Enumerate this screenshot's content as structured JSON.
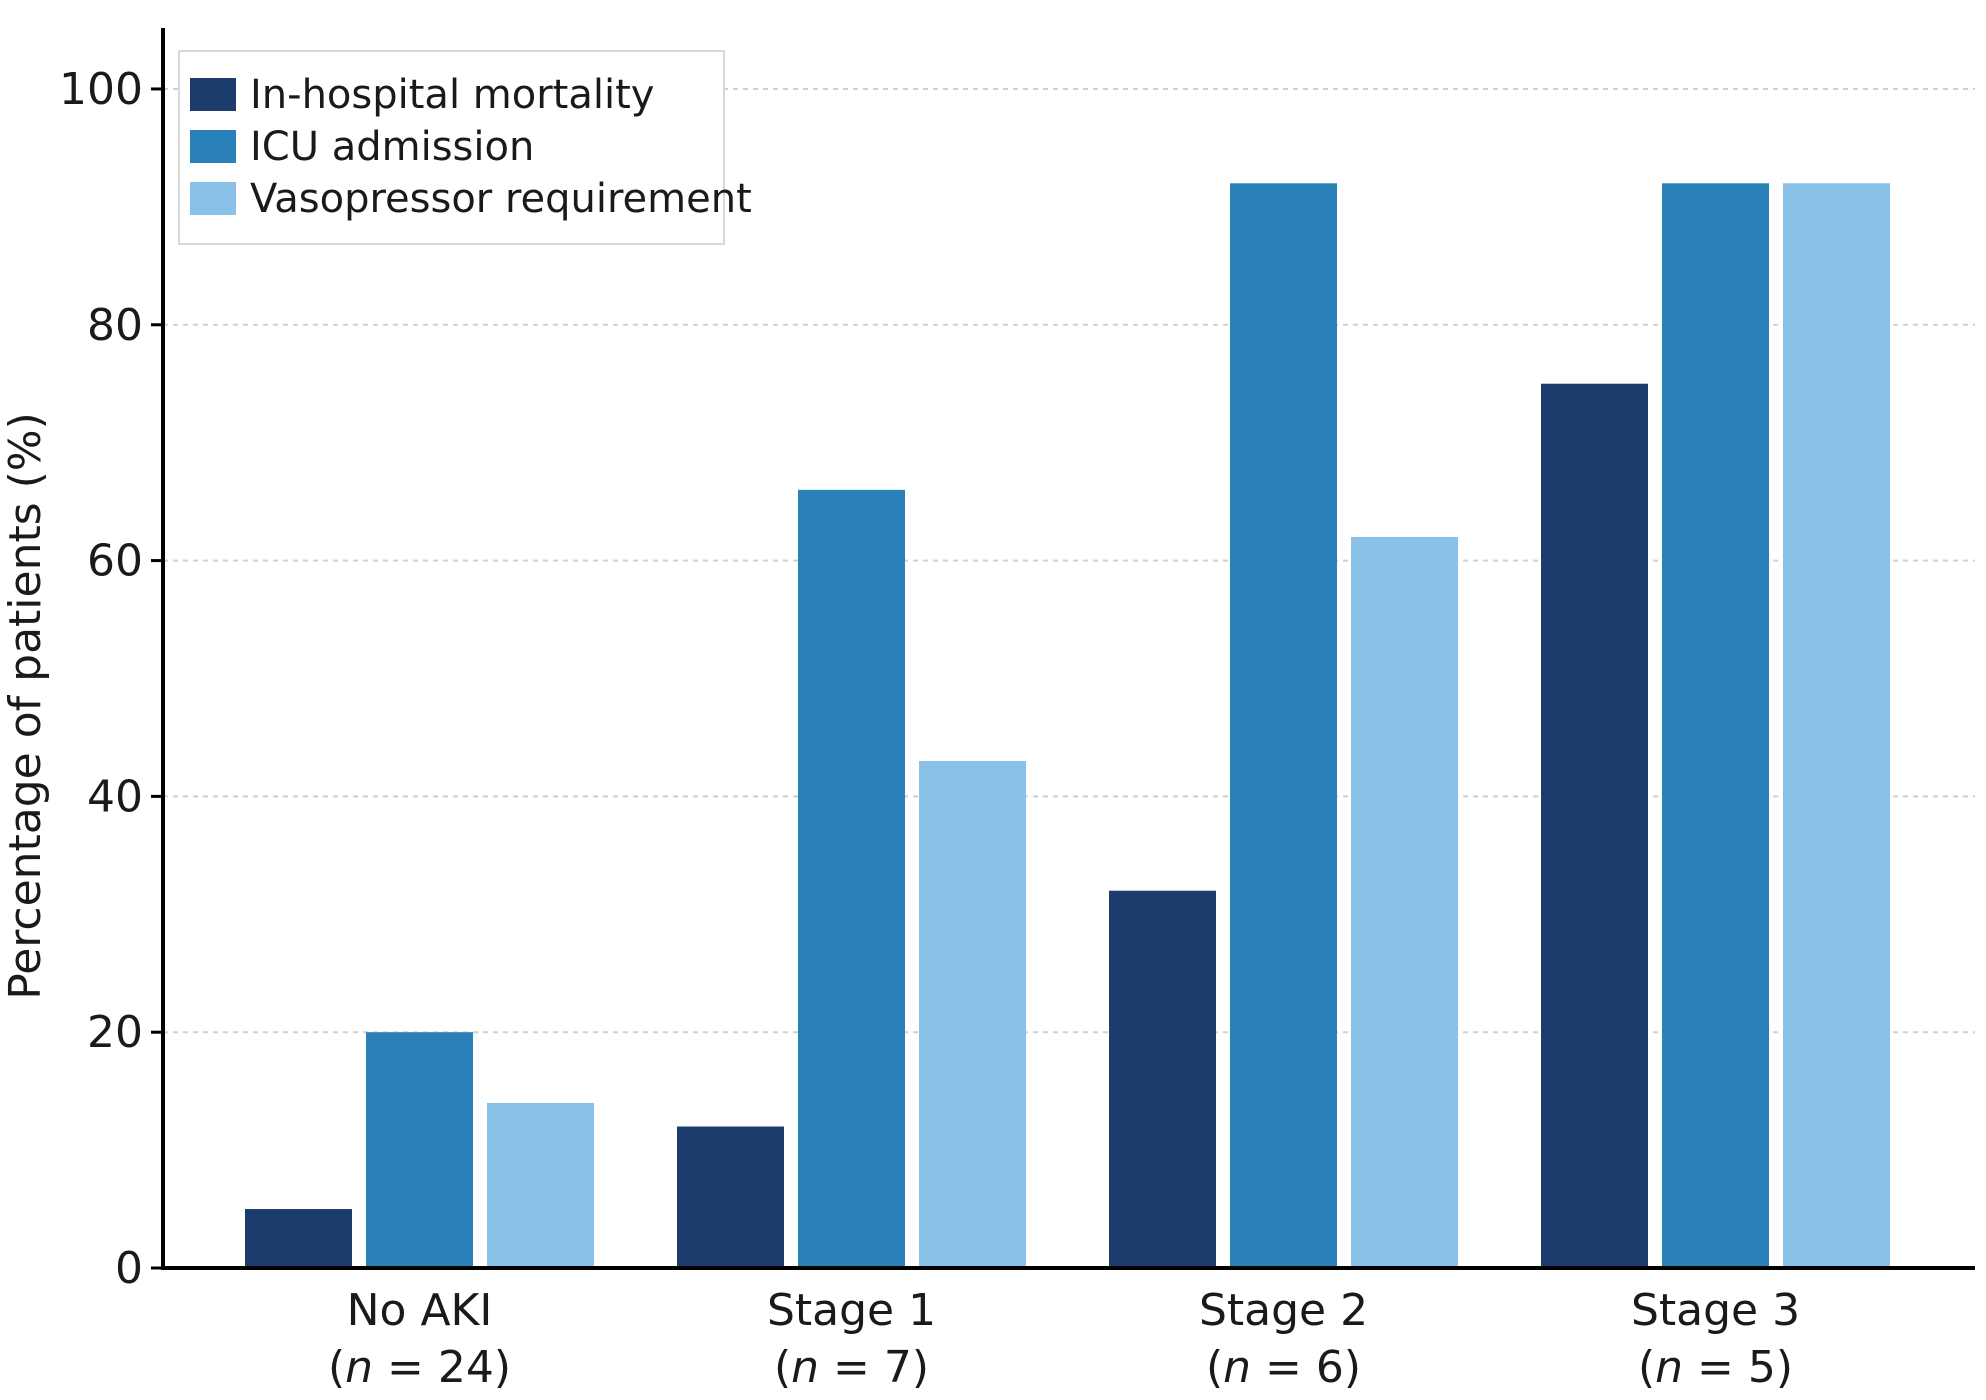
{
  "chart_data": {
    "type": "bar",
    "ylabel": "Percentage of patients (%)",
    "ylim": [
      0,
      105
    ],
    "yticks": [
      0,
      20,
      40,
      60,
      80,
      100
    ],
    "grid": true,
    "legend_position": "top-left",
    "categories": [
      {
        "name": "No AKI",
        "n": "24"
      },
      {
        "name": "Stage 1",
        "n": "7"
      },
      {
        "name": "Stage 2",
        "n": "6"
      },
      {
        "name": "Stage 3",
        "n": "5"
      }
    ],
    "series": [
      {
        "name": "In-hospital mortality",
        "color": "#1c3d6c",
        "values": [
          5,
          12,
          32,
          75
        ]
      },
      {
        "name": "ICU admission",
        "color": "#2a80b9",
        "values": [
          20,
          66,
          92,
          92
        ]
      },
      {
        "name": "Vasopressor requirement",
        "color": "#89c1e8",
        "values": [
          14,
          43,
          62,
          92
        ]
      }
    ]
  }
}
